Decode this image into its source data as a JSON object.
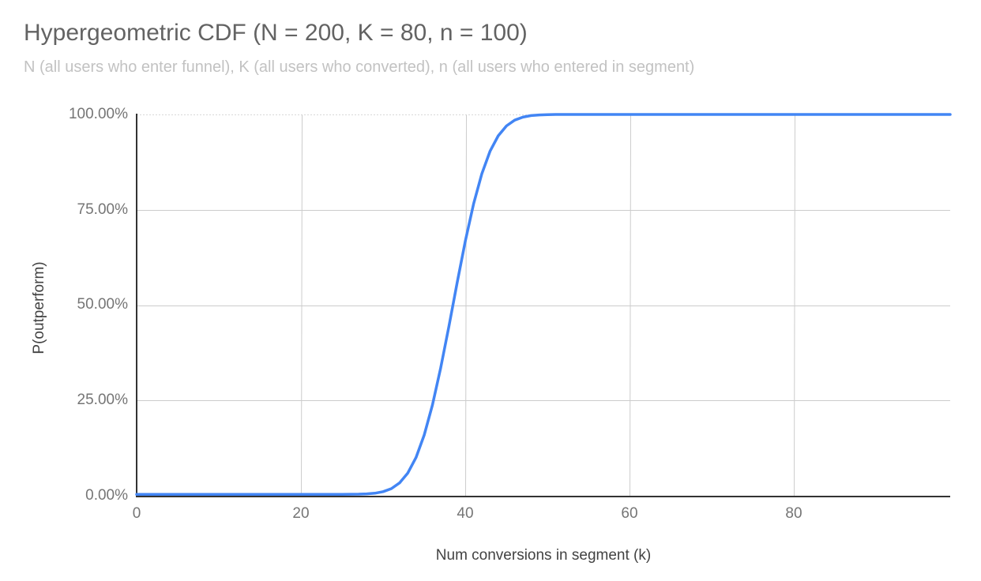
{
  "chart_data": {
    "type": "line",
    "title": "Hypergeometric CDF (N = 200, K = 80, n = 100)",
    "subtitle": "N (all users who enter funnel), K (all users who converted), n (all users who entered in segment)",
    "xlabel": "Num conversions in segment (k)",
    "ylabel": "P(outperform)",
    "xlim": [
      0,
      99
    ],
    "ylim": [
      0,
      1
    ],
    "grid": true,
    "legend_position": "none",
    "xtick_values": [
      0,
      20,
      40,
      60,
      80
    ],
    "xtick_labels": [
      "0",
      "20",
      "40",
      "60",
      "80"
    ],
    "ytick_values": [
      0,
      0.25,
      0.5,
      0.75,
      1
    ],
    "ytick_labels": [
      "0.00%",
      "25.00%",
      "50.00%",
      "75.00%",
      "100.00%"
    ],
    "colors": {
      "series_line": "#4285f4",
      "gridline": "#cccccc",
      "top_gridline": "#d8d8d8",
      "axis_line": "#333333",
      "title_text": "#636363",
      "subtitle_text": "#c2c2c2",
      "tick_text": "#757575",
      "axis_title_text": "#424242",
      "background": "#ffffff"
    },
    "series": [
      {
        "name": "P(outperform)",
        "color": "#4285f4",
        "x": [
          0,
          1,
          2,
          3,
          4,
          5,
          6,
          7,
          8,
          9,
          10,
          11,
          12,
          13,
          14,
          15,
          16,
          17,
          18,
          19,
          20,
          21,
          22,
          23,
          24,
          25,
          26,
          27,
          28,
          29,
          30,
          31,
          32,
          33,
          34,
          35,
          36,
          37,
          38,
          39,
          40,
          41,
          42,
          43,
          44,
          45,
          46,
          47,
          48,
          49,
          50,
          51,
          52,
          53,
          54,
          55,
          56,
          57,
          58,
          59,
          60,
          61,
          62,
          63,
          64,
          65,
          66,
          67,
          68,
          69,
          70,
          71,
          72,
          73,
          74,
          75,
          76,
          77,
          78,
          79,
          80,
          81,
          82,
          83,
          84,
          85,
          86,
          87,
          88,
          89,
          90,
          91,
          92,
          93,
          94,
          95,
          96,
          97,
          98,
          99
        ],
        "y": [
          0,
          0,
          0,
          0,
          0,
          0,
          0,
          0,
          0,
          0,
          0,
          0,
          0,
          0,
          0,
          0,
          0,
          0,
          0,
          0,
          0,
          0,
          0,
          0,
          1e-05,
          4e-05,
          0.00014,
          0.0004,
          0.0012,
          0.003,
          0.007,
          0.015,
          0.0301,
          0.0561,
          0.0969,
          0.1562,
          0.2353,
          0.3326,
          0.4426,
          0.5574,
          0.6674,
          0.7647,
          0.8438,
          0.9031,
          0.9439,
          0.9699,
          0.985,
          0.993,
          0.997,
          0.9988,
          0.9996,
          0.9999,
          1,
          1,
          1,
          1,
          1,
          1,
          1,
          1,
          1,
          1,
          1,
          1,
          1,
          1,
          1,
          1,
          1,
          1,
          1,
          1,
          1,
          1,
          1,
          1,
          1,
          1,
          1,
          1,
          1,
          1,
          1,
          1,
          1,
          1,
          1,
          1,
          1,
          1,
          1,
          1,
          1,
          1,
          1,
          1,
          1,
          1,
          1,
          1
        ]
      }
    ]
  }
}
